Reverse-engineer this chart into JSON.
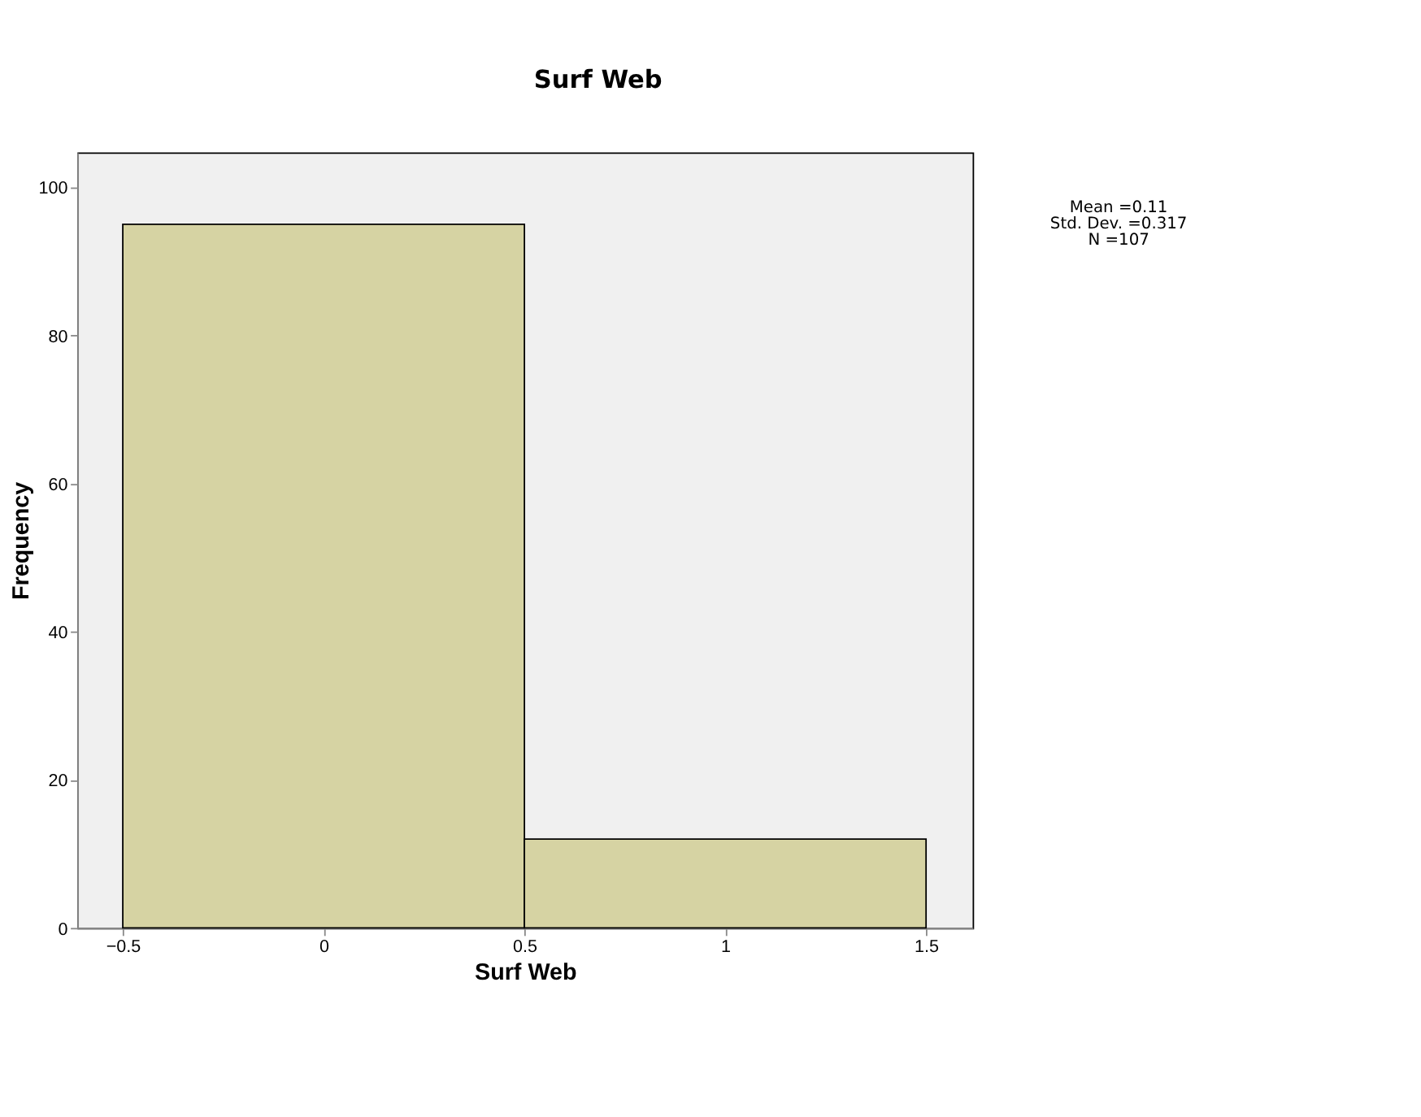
{
  "chart_data": {
    "type": "histogram",
    "title": "Surf Web",
    "xlabel": "Surf Web",
    "ylabel": "Frequency",
    "bins": [
      -0.5,
      0.5,
      1.5
    ],
    "values": [
      95,
      12
    ],
    "color": "#d6d3a3",
    "xlim": [
      -0.613,
      1.616
    ],
    "xticks": [
      -0.5,
      0,
      0.5,
      1,
      1.5
    ],
    "ylim": [
      0,
      104.7
    ],
    "yticks": [
      0,
      20,
      40,
      60,
      80,
      100
    ],
    "annotations": [
      "Mean =0.11",
      "Std. Dev. =0.317",
      "N =107"
    ]
  }
}
